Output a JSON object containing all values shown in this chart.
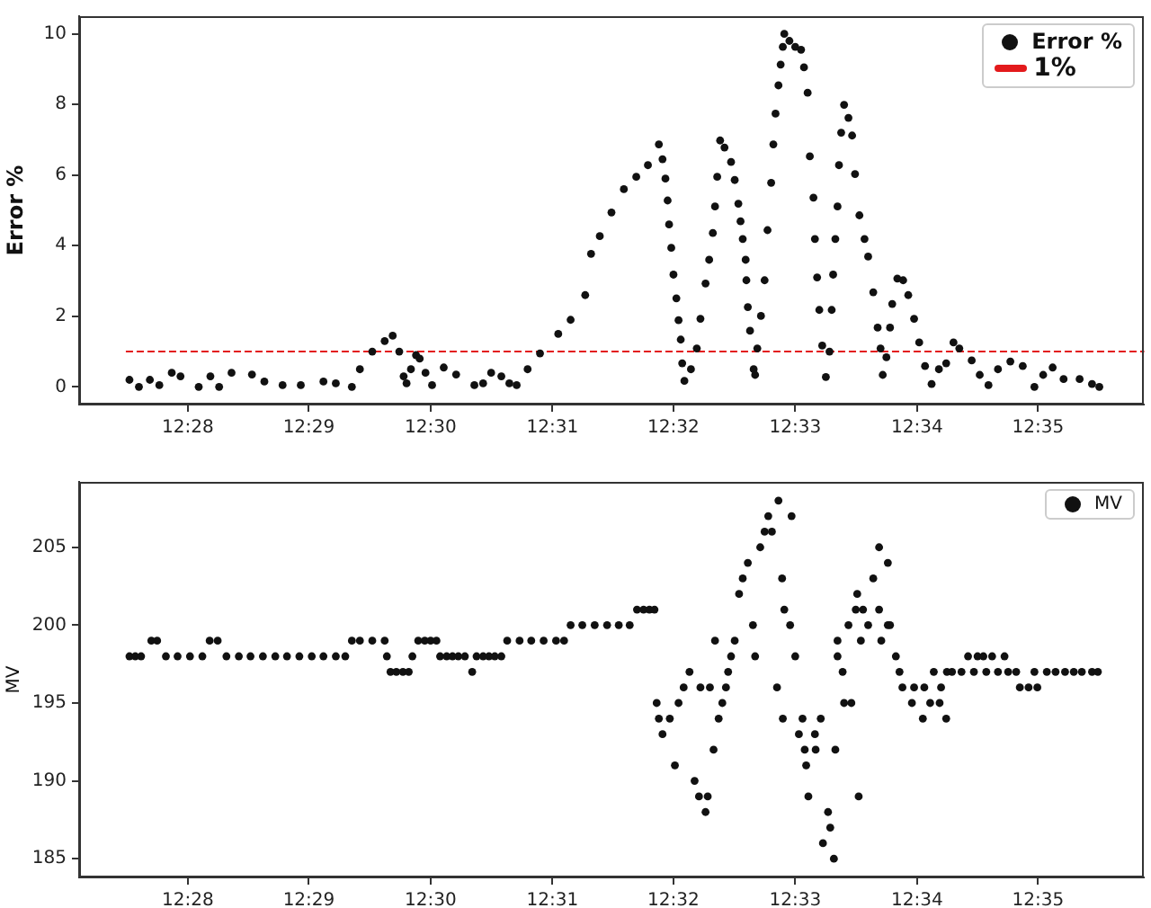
{
  "chart_data": [
    {
      "type": "scatter",
      "ylabel": "Error %",
      "xlim": [
        12.4518,
        12.5978
      ],
      "xticks": [
        {
          "value": 12.4667,
          "label": "12:28"
        },
        {
          "value": 12.4833,
          "label": "12:29"
        },
        {
          "value": 12.5,
          "label": "12:30"
        },
        {
          "value": 12.5167,
          "label": "12:31"
        },
        {
          "value": 12.5333,
          "label": "12:32"
        },
        {
          "value": 12.55,
          "label": "12:33"
        },
        {
          "value": 12.5667,
          "label": "12:34"
        },
        {
          "value": 12.5833,
          "label": "12:35"
        }
      ],
      "ylim": [
        -0.5,
        10.5
      ],
      "yticks": [
        0,
        2,
        4,
        6,
        8,
        10
      ],
      "grid": false,
      "legend": "top right",
      "marker": "circle",
      "ref_lines": [
        {
          "axis": "y",
          "value": 1,
          "label": "1%",
          "color": "#e31a1c",
          "line_style": "dashed"
        }
      ],
      "series": [
        {
          "name": "Error %",
          "color": "#111111",
          "x": [
            12.4587,
            12.46,
            12.4615,
            12.4628,
            12.4645,
            12.4657,
            12.4682,
            12.4698,
            12.471,
            12.4727,
            12.4755,
            12.4772,
            12.4797,
            12.4822,
            12.4853,
            12.487,
            12.4892,
            12.4903,
            12.492,
            12.4937,
            12.4948,
            12.4957,
            12.4963,
            12.4967,
            12.4973,
            12.498,
            12.4985,
            12.4993,
            12.5002,
            12.5018,
            12.5035,
            12.506,
            12.5072,
            12.5083,
            12.5097,
            12.5108,
            12.5118,
            12.5133,
            12.515,
            12.5175,
            12.5192,
            12.5212,
            12.522,
            12.5232,
            12.5248,
            12.5265,
            12.5282,
            12.5298,
            12.5313,
            12.5318,
            12.5322,
            12.5325,
            12.5327,
            12.533,
            12.5333,
            12.5337,
            12.534,
            12.5343,
            12.5345,
            12.5348,
            12.5357,
            12.5365,
            12.537,
            12.5377,
            12.5382,
            12.5387,
            12.539,
            12.5393,
            12.5397,
            12.5403,
            12.5412,
            12.5417,
            12.5422,
            12.5425,
            12.5428,
            12.5432,
            12.5433,
            12.5435,
            12.5438,
            12.5443,
            12.5445,
            12.5448,
            12.5453,
            12.5458,
            12.5462,
            12.5467,
            12.547,
            12.5473,
            12.5477,
            12.548,
            12.5483,
            12.5485,
            12.5492,
            12.55,
            12.5508,
            12.5512,
            12.5517,
            12.552,
            12.5525,
            12.5527,
            12.553,
            12.5533,
            12.5537,
            12.5542,
            12.5547,
            12.555,
            12.5552,
            12.5555,
            12.5558,
            12.556,
            12.5563,
            12.5567,
            12.5573,
            12.5578,
            12.5582,
            12.5588,
            12.5595,
            12.56,
            12.5607,
            12.5613,
            12.5617,
            12.562,
            12.5625,
            12.563,
            12.5633,
            12.564,
            12.5648,
            12.5655,
            12.5663,
            12.567,
            12.5678,
            12.5687,
            12.5697,
            12.5707,
            12.5717,
            12.5725,
            12.5742,
            12.5753,
            12.5765,
            12.5778,
            12.5795,
            12.5812,
            12.5828,
            12.584,
            12.5853,
            12.5868,
            12.589,
            12.5907,
            12.5917
          ],
          "values": [
            0.2,
            0.0,
            0.2,
            0.05,
            0.4,
            0.3,
            0.0,
            0.3,
            0.0,
            0.4,
            0.35,
            0.15,
            0.05,
            0.05,
            0.15,
            0.1,
            0.0,
            0.5,
            1.0,
            1.3,
            1.45,
            1.0,
            0.3,
            0.1,
            0.5,
            0.9,
            0.8,
            0.4,
            0.05,
            0.55,
            0.35,
            0.05,
            0.1,
            0.4,
            0.3,
            0.1,
            0.05,
            0.5,
            0.95,
            1.5,
            1.9,
            2.6,
            3.77,
            4.27,
            4.94,
            5.6,
            5.95,
            6.28,
            6.87,
            6.45,
            5.9,
            5.28,
            4.6,
            3.94,
            3.18,
            2.51,
            1.89,
            1.34,
            0.67,
            0.17,
            0.5,
            1.09,
            1.93,
            2.93,
            3.6,
            4.36,
            5.11,
            5.95,
            6.98,
            6.78,
            6.37,
            5.86,
            5.19,
            4.69,
            4.19,
            3.6,
            3.02,
            2.26,
            1.59,
            0.5,
            0.34,
            1.09,
            2.01,
            3.02,
            4.44,
            5.78,
            6.87,
            7.74,
            8.54,
            9.13,
            9.63,
            10.0,
            9.8,
            9.63,
            9.55,
            9.05,
            8.33,
            6.53,
            5.36,
            4.19,
            3.1,
            2.18,
            1.17,
            0.28,
            1.0,
            2.18,
            3.18,
            4.19,
            5.11,
            6.28,
            7.2,
            7.99,
            7.62,
            7.12,
            6.03,
            4.86,
            4.19,
            3.69,
            2.68,
            1.68,
            1.09,
            0.34,
            0.84,
            1.68,
            2.35,
            3.07,
            3.02,
            2.6,
            1.93,
            1.26,
            0.59,
            0.08,
            0.5,
            0.67,
            1.26,
            1.09,
            0.75,
            0.34,
            0.05,
            0.5,
            0.72,
            0.59,
            0.0,
            0.34,
            0.55,
            0.22,
            0.22,
            0.08,
            0.0
          ]
        }
      ]
    },
    {
      "type": "scatter",
      "ylabel": "MV",
      "xlim": [
        12.4518,
        12.5978
      ],
      "xticks": [
        {
          "value": 12.4667,
          "label": "12:28"
        },
        {
          "value": 12.4833,
          "label": "12:29"
        },
        {
          "value": 12.5,
          "label": "12:30"
        },
        {
          "value": 12.5167,
          "label": "12:31"
        },
        {
          "value": 12.5333,
          "label": "12:32"
        },
        {
          "value": 12.55,
          "label": "12:33"
        },
        {
          "value": 12.5667,
          "label": "12:34"
        },
        {
          "value": 12.5833,
          "label": "12:35"
        }
      ],
      "ylim": [
        183.8,
        209.2
      ],
      "yticks": [
        185,
        190,
        195,
        200,
        205
      ],
      "grid": false,
      "legend": "top right",
      "marker": "circle",
      "series": [
        {
          "name": "MV",
          "color": "#111111",
          "x": [
            12.4587,
            12.4595,
            12.4603,
            12.4617,
            12.4625,
            12.4637,
            12.4653,
            12.467,
            12.4687,
            12.4697,
            12.4708,
            12.472,
            12.4737,
            12.4753,
            12.477,
            12.4787,
            12.4803,
            12.482,
            12.4837,
            12.4853,
            12.487,
            12.4883,
            12.4892,
            12.4903,
            12.492,
            12.4937,
            12.494,
            12.4945,
            12.4953,
            12.4962,
            12.497,
            12.4975,
            12.4983,
            12.4992,
            12.5,
            12.5008,
            12.5013,
            12.5022,
            12.503,
            12.5038,
            12.5047,
            12.5057,
            12.5063,
            12.5072,
            12.508,
            12.5088,
            12.5097,
            12.5105,
            12.5122,
            12.5138,
            12.5155,
            12.5172,
            12.5183,
            12.5192,
            12.5208,
            12.5225,
            12.5242,
            12.5258,
            12.5273,
            12.5283,
            12.5292,
            12.53,
            12.5307,
            12.531,
            12.5313,
            12.5318,
            12.5328,
            12.5335,
            12.534,
            12.5347,
            12.5355,
            12.5362,
            12.5368,
            12.537,
            12.5377,
            12.538,
            12.5383,
            12.5388,
            12.539,
            12.5395,
            12.54,
            12.5405,
            12.5408,
            12.5412,
            12.5417,
            12.5423,
            12.5428,
            12.5435,
            12.5442,
            12.5445,
            12.5452,
            12.5458,
            12.5463,
            12.5468,
            12.5475,
            12.5477,
            12.5482,
            12.5483,
            12.5485,
            12.5493,
            12.5495,
            12.55,
            12.5505,
            12.551,
            12.5513,
            12.5515,
            12.5518,
            12.5527,
            12.5528,
            12.5535,
            12.5538,
            12.5545,
            12.5548,
            12.5553,
            12.5555,
            12.5558,
            12.5558,
            12.5565,
            12.5567,
            12.5573,
            12.5577,
            12.5583,
            12.5585,
            12.5587,
            12.559,
            12.5593,
            12.56,
            12.5607,
            12.5615,
            12.5615,
            12.5618,
            12.5627,
            12.5627,
            12.563,
            12.5638,
            12.5643,
            12.5647,
            12.566,
            12.5663,
            12.5675,
            12.5677,
            12.5685,
            12.569,
            12.5698,
            12.57,
            12.5707,
            12.5708,
            12.5715,
            12.5728,
            12.5737,
            12.5745,
            12.575,
            12.5758,
            12.5762,
            12.577,
            12.5778,
            12.5787,
            12.5792,
            12.5803,
            12.5808,
            12.582,
            12.5828,
            12.5832,
            12.5845,
            12.5857,
            12.587,
            12.5882,
            12.5893,
            12.5907,
            12.5915
          ],
          "values": [
            198,
            198,
            198,
            199,
            199,
            198,
            198,
            198,
            198,
            199,
            199,
            198,
            198,
            198,
            198,
            198,
            198,
            198,
            198,
            198,
            198,
            198,
            199,
            199,
            199,
            199,
            198,
            197,
            197,
            197,
            197,
            198,
            199,
            199,
            199,
            199,
            198,
            198,
            198,
            198,
            198,
            197,
            198,
            198,
            198,
            198,
            198,
            199,
            199,
            199,
            199,
            199,
            199,
            200,
            200,
            200,
            200,
            200,
            200,
            201,
            201,
            201,
            201,
            195,
            194,
            193,
            194,
            191,
            195,
            196,
            197,
            190,
            189,
            196,
            188,
            189,
            196,
            192,
            199,
            194,
            195,
            196,
            197,
            198,
            199,
            202,
            203,
            204,
            200,
            198,
            205,
            206,
            207,
            206,
            196,
            208,
            203,
            194,
            201,
            200,
            207,
            198,
            193,
            194,
            192,
            191,
            189,
            193,
            192,
            194,
            186,
            188,
            187,
            185,
            192,
            199,
            198,
            197,
            195,
            200,
            195,
            201,
            202,
            189,
            199,
            201,
            200,
            203,
            205,
            201,
            199,
            204,
            200,
            200,
            198,
            197,
            196,
            195,
            196,
            194,
            196,
            195,
            197,
            195,
            196,
            194,
            197,
            197,
            197,
            198,
            197,
            198,
            198,
            197,
            198,
            197,
            198,
            197,
            197,
            196,
            196,
            197,
            196,
            197,
            197,
            197,
            197,
            197,
            197,
            197
          ]
        }
      ]
    }
  ]
}
